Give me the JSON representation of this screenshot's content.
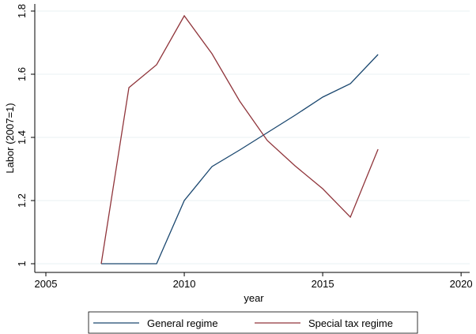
{
  "chart_data": {
    "type": "line",
    "x_label": "year",
    "y_label": "Labor (2007=1)",
    "x": [
      2007,
      2008,
      2009,
      2010,
      2011,
      2012,
      2013,
      2014,
      2015,
      2016,
      2017
    ],
    "series": [
      {
        "name": "General regime",
        "color": "#1a476f",
        "values": [
          1,
          1,
          1,
          1.2,
          1.3075,
          1.36,
          1.415,
          1.47,
          1.5275,
          1.57,
          1.6625
        ]
      },
      {
        "name": "Special tax regime",
        "color": "#90353b",
        "values": [
          1,
          1.5575,
          1.63,
          1.785,
          1.665,
          1.515,
          1.39,
          1.31,
          1.2375,
          1.1475,
          1.3625
        ]
      }
    ],
    "xlim": [
      2004.6,
      2020.31
    ],
    "ylim": [
      0.9725,
      1.8225
    ],
    "xticks": [
      2005,
      2010,
      2015,
      2020
    ],
    "yticks": [
      1,
      1.2,
      1.4,
      1.6,
      1.8
    ],
    "grid": true,
    "legend": "bottom"
  }
}
